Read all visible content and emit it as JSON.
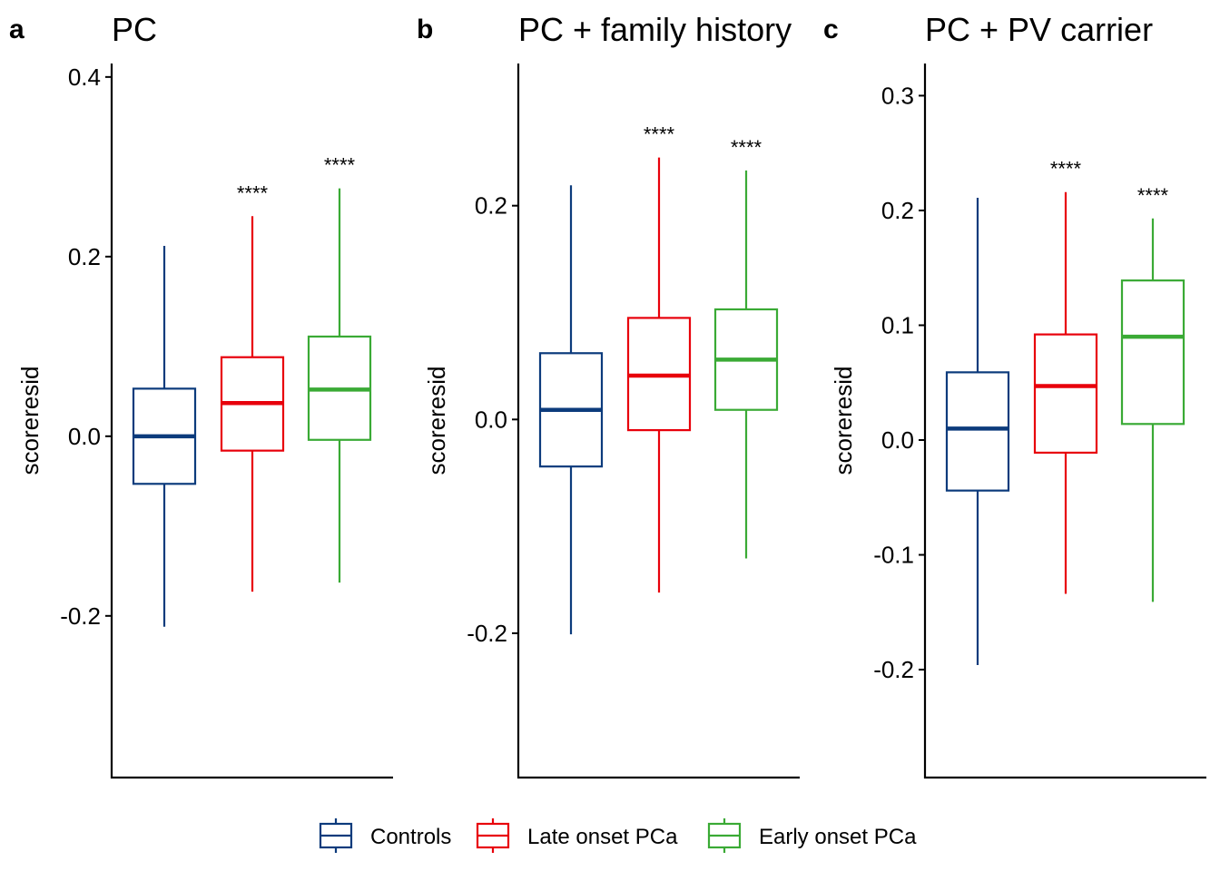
{
  "chart_data": [
    {
      "type": "box",
      "panel_label": "a",
      "title": "PC",
      "ylabel": "scoreresid",
      "ylim": [
        -0.38,
        0.415
      ],
      "yticks": [
        -0.2,
        0.0,
        0.2,
        0.4
      ],
      "ytick_labels": [
        "-0.2",
        "0.0",
        "0.2",
        "0.4"
      ],
      "categories": [
        "Controls",
        "Late onset PCa",
        "Early onset PCa"
      ],
      "boxes": [
        {
          "group": "Controls",
          "whisker_low": -0.212,
          "q1": -0.053,
          "median": 0.0,
          "q3": 0.053,
          "whisker_high": 0.212,
          "signif": ""
        },
        {
          "group": "Late onset PCa",
          "whisker_low": -0.173,
          "q1": -0.016,
          "median": 0.037,
          "q3": 0.088,
          "whisker_high": 0.245,
          "signif": "****"
        },
        {
          "group": "Early onset PCa",
          "whisker_low": -0.163,
          "q1": -0.004,
          "median": 0.052,
          "q3": 0.111,
          "whisker_high": 0.276,
          "signif": "****"
        }
      ]
    },
    {
      "type": "box",
      "panel_label": "b",
      "title": "PC + family history",
      "ylabel": "scoreresid",
      "ylim": [
        -0.335,
        0.333
      ],
      "yticks": [
        -0.2,
        0.0,
        0.2
      ],
      "ytick_labels": [
        "-0.2",
        "0.0",
        "0.2"
      ],
      "categories": [
        "Controls",
        "Late onset PCa",
        "Early onset PCa"
      ],
      "boxes": [
        {
          "group": "Controls",
          "whisker_low": -0.201,
          "q1": -0.044,
          "median": 0.009,
          "q3": 0.062,
          "whisker_high": 0.219,
          "signif": ""
        },
        {
          "group": "Late onset PCa",
          "whisker_low": -0.162,
          "q1": -0.01,
          "median": 0.041,
          "q3": 0.095,
          "whisker_high": 0.245,
          "signif": "****"
        },
        {
          "group": "Early onset PCa",
          "whisker_low": -0.13,
          "q1": 0.009,
          "median": 0.056,
          "q3": 0.103,
          "whisker_high": 0.233,
          "signif": "****"
        }
      ]
    },
    {
      "type": "box",
      "panel_label": "c",
      "title": "PC + PV carrier",
      "ylabel": "scoreresid",
      "ylim": [
        -0.294,
        0.328
      ],
      "yticks": [
        -0.2,
        -0.1,
        0.0,
        0.1,
        0.2,
        0.3
      ],
      "ytick_labels": [
        "-0.2",
        "-0.1",
        "0.0",
        "0.1",
        "0.2",
        "0.3"
      ],
      "categories": [
        "Controls",
        "Late onset PCa",
        "Early onset PCa"
      ],
      "boxes": [
        {
          "group": "Controls",
          "whisker_low": -0.196,
          "q1": -0.044,
          "median": 0.01,
          "q3": 0.059,
          "whisker_high": 0.211,
          "signif": ""
        },
        {
          "group": "Late onset PCa",
          "whisker_low": -0.134,
          "q1": -0.011,
          "median": 0.047,
          "q3": 0.092,
          "whisker_high": 0.216,
          "signif": "****"
        },
        {
          "group": "Early onset PCa",
          "whisker_low": -0.141,
          "q1": 0.014,
          "median": 0.09,
          "q3": 0.139,
          "whisker_high": 0.193,
          "signif": "****"
        }
      ]
    }
  ],
  "legend": {
    "position": "bottom",
    "items": [
      {
        "label": "Controls",
        "color": "#0c3b7c"
      },
      {
        "label": "Late onset PCa",
        "color": "#e8000b"
      },
      {
        "label": "Early onset PCa",
        "color": "#3aaa35"
      }
    ]
  },
  "colors": {
    "Controls": "#0c3b7c",
    "Late onset PCa": "#e8000b",
    "Early onset PCa": "#3aaa35"
  }
}
